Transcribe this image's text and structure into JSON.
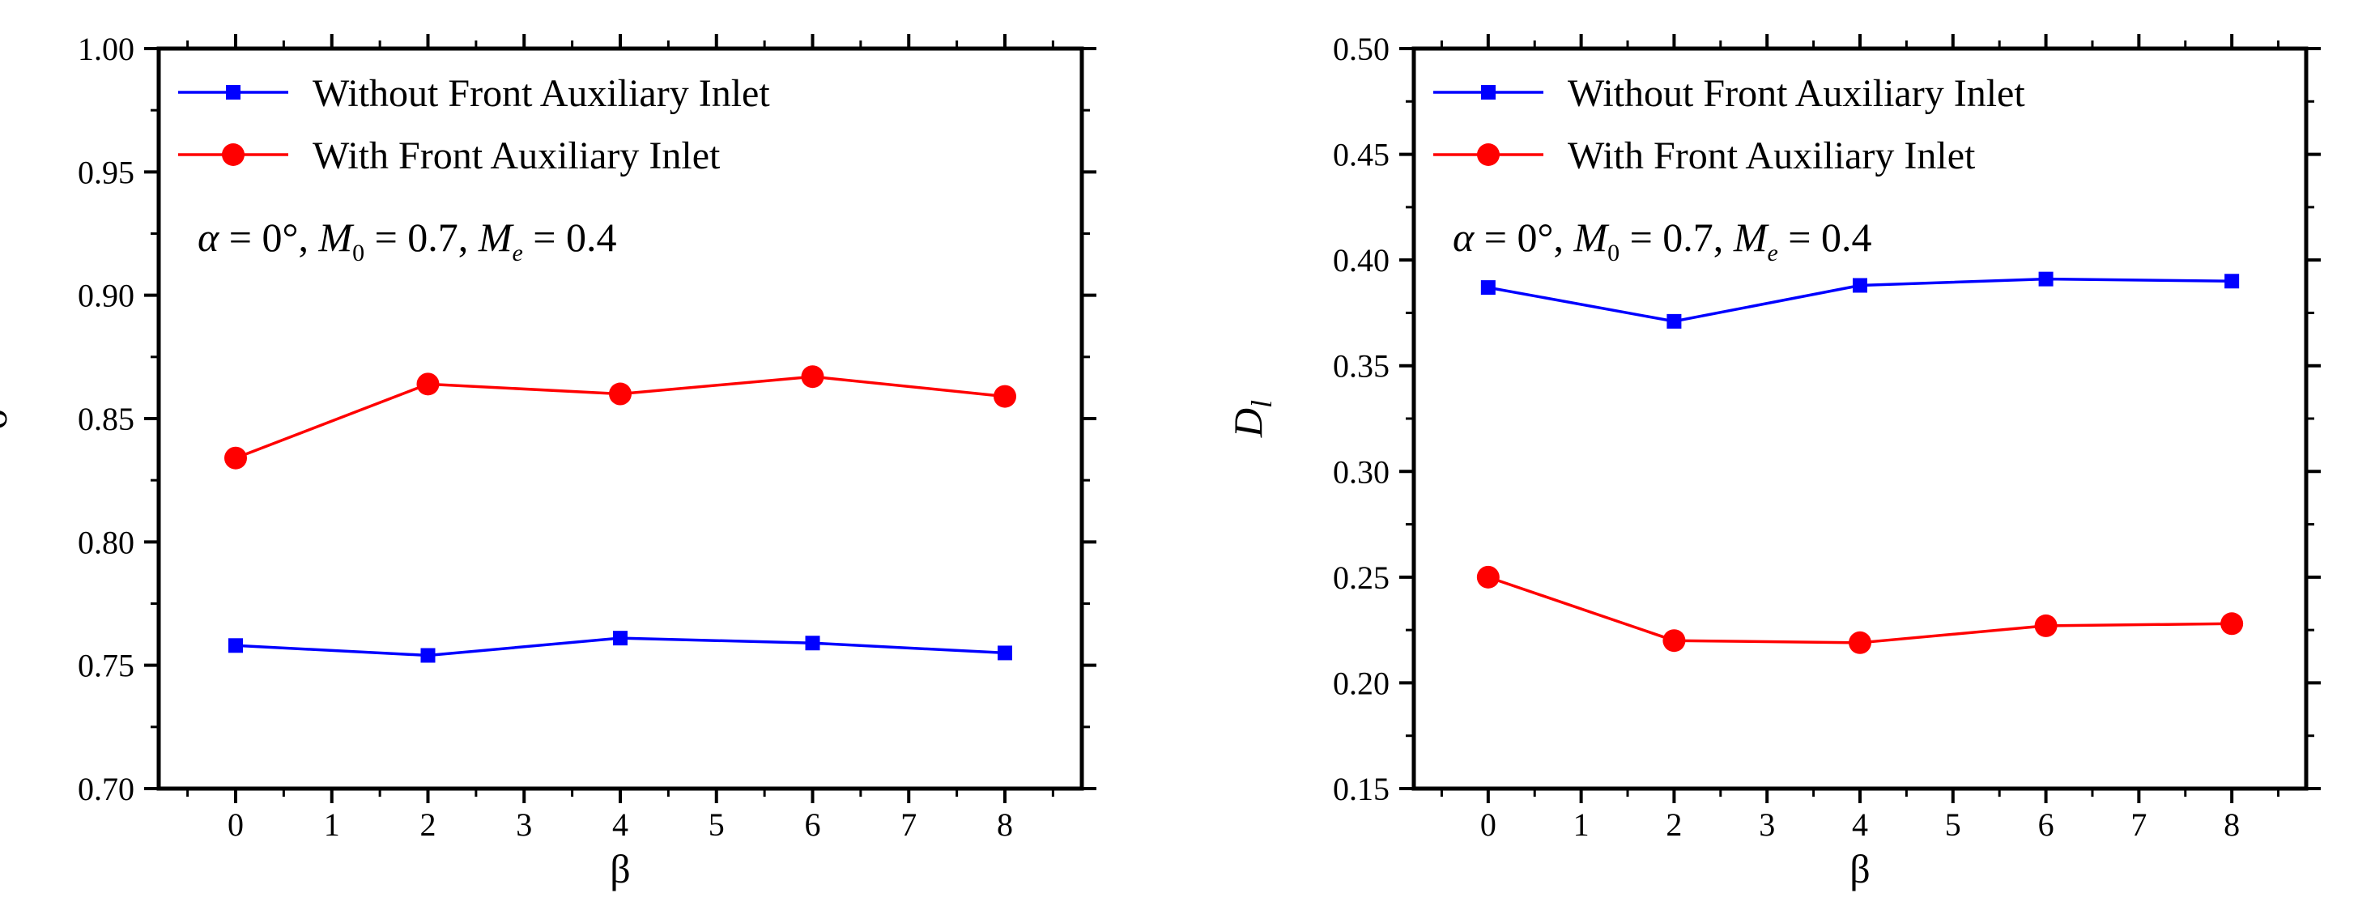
{
  "chart_data": [
    {
      "type": "line",
      "xlabel": "β",
      "ylabel": "σ",
      "xlim": [
        -0.8,
        8.8
      ],
      "ylim": [
        0.7,
        1.0
      ],
      "x_ticks": [
        0,
        1,
        2,
        3,
        4,
        5,
        6,
        7,
        8
      ],
      "y_ticks": [
        "0.70",
        "0.75",
        "0.80",
        "0.85",
        "0.90",
        "0.95",
        "1.00"
      ],
      "legend_position": "top-left",
      "annotation": {
        "alpha": "α",
        "eq_alpha": " = 0°, ",
        "m0": "M",
        "m0_sub": "0",
        "eq_m0": " = 0.7, ",
        "me": "M",
        "me_sub": "e",
        "eq_me": " = 0.4"
      },
      "series": [
        {
          "name": "Without Front Auxiliary Inlet",
          "color": "#0000ff",
          "marker": "square",
          "x": [
            0,
            2,
            4,
            6,
            8
          ],
          "values": [
            0.758,
            0.754,
            0.761,
            0.759,
            0.755
          ]
        },
        {
          "name": "With Front Auxiliary Inlet",
          "color": "#ff0000",
          "marker": "circle",
          "x": [
            0,
            2,
            4,
            6,
            8
          ],
          "values": [
            0.834,
            0.864,
            0.86,
            0.867,
            0.859
          ]
        }
      ]
    },
    {
      "type": "line",
      "xlabel": "β",
      "ylabel": "D",
      "ylabel_sub": "l",
      "xlim": [
        -0.8,
        8.8
      ],
      "ylim": [
        0.15,
        0.5
      ],
      "x_ticks": [
        0,
        1,
        2,
        3,
        4,
        5,
        6,
        7,
        8
      ],
      "y_ticks": [
        "0.15",
        "0.20",
        "0.25",
        "0.30",
        "0.35",
        "0.40",
        "0.45",
        "0.50"
      ],
      "legend_position": "top-left",
      "annotation": {
        "alpha": "α",
        "eq_alpha": " = 0°, ",
        "m0": "M",
        "m0_sub": "0",
        "eq_m0": " = 0.7, ",
        "me": "M",
        "me_sub": "e",
        "eq_me": " = 0.4"
      },
      "series": [
        {
          "name": "Without Front Auxiliary Inlet",
          "color": "#0000ff",
          "marker": "square",
          "x": [
            0,
            2,
            4,
            6,
            8
          ],
          "values": [
            0.387,
            0.371,
            0.388,
            0.391,
            0.39
          ]
        },
        {
          "name": "With Front Auxiliary Inlet",
          "color": "#ff0000",
          "marker": "circle",
          "x": [
            0,
            2,
            4,
            6,
            8
          ],
          "values": [
            0.25,
            0.22,
            0.219,
            0.227,
            0.228
          ]
        }
      ]
    }
  ]
}
